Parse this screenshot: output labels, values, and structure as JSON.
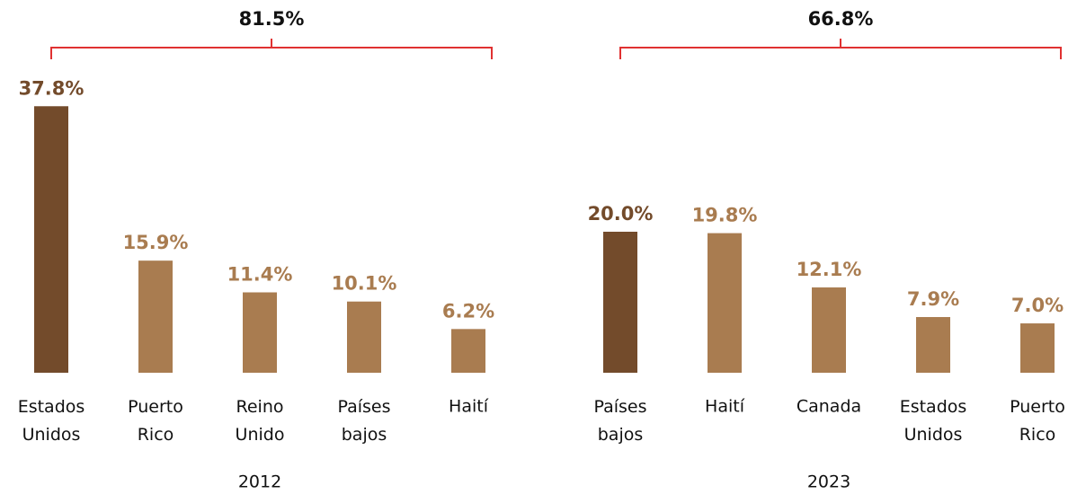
{
  "chart_data": [
    {
      "type": "bar",
      "annotation": "81.5%",
      "x_label": "2012",
      "categories": [
        "Estados Unidos",
        "Puerto Rico",
        "Reino Unido",
        "Países bajos",
        "Haití"
      ],
      "values": [
        37.8,
        15.9,
        11.4,
        10.1,
        6.2
      ],
      "value_labels": [
        "37.8%",
        "15.9%",
        "11.4%",
        "10.1%",
        "6.2%"
      ],
      "colors": [
        "#734b2b",
        "#a97c50",
        "#a97c50",
        "#a97c50",
        "#a97c50"
      ],
      "ylim": [
        0,
        40
      ]
    },
    {
      "type": "bar",
      "annotation": "66.8%",
      "x_label": "2023",
      "categories": [
        "Países bajos",
        "Haití",
        "Canada",
        "Estados Unidos",
        "Puerto Rico"
      ],
      "values": [
        20.0,
        19.8,
        12.1,
        7.9,
        7.0
      ],
      "value_labels": [
        "20.0%",
        "19.8%",
        "12.1%",
        "7.9%",
        "7.0%"
      ],
      "colors": [
        "#734b2b",
        "#a97c50",
        "#a97c50",
        "#a97c50",
        "#a97c50"
      ],
      "ylim": [
        0,
        40
      ]
    }
  ]
}
